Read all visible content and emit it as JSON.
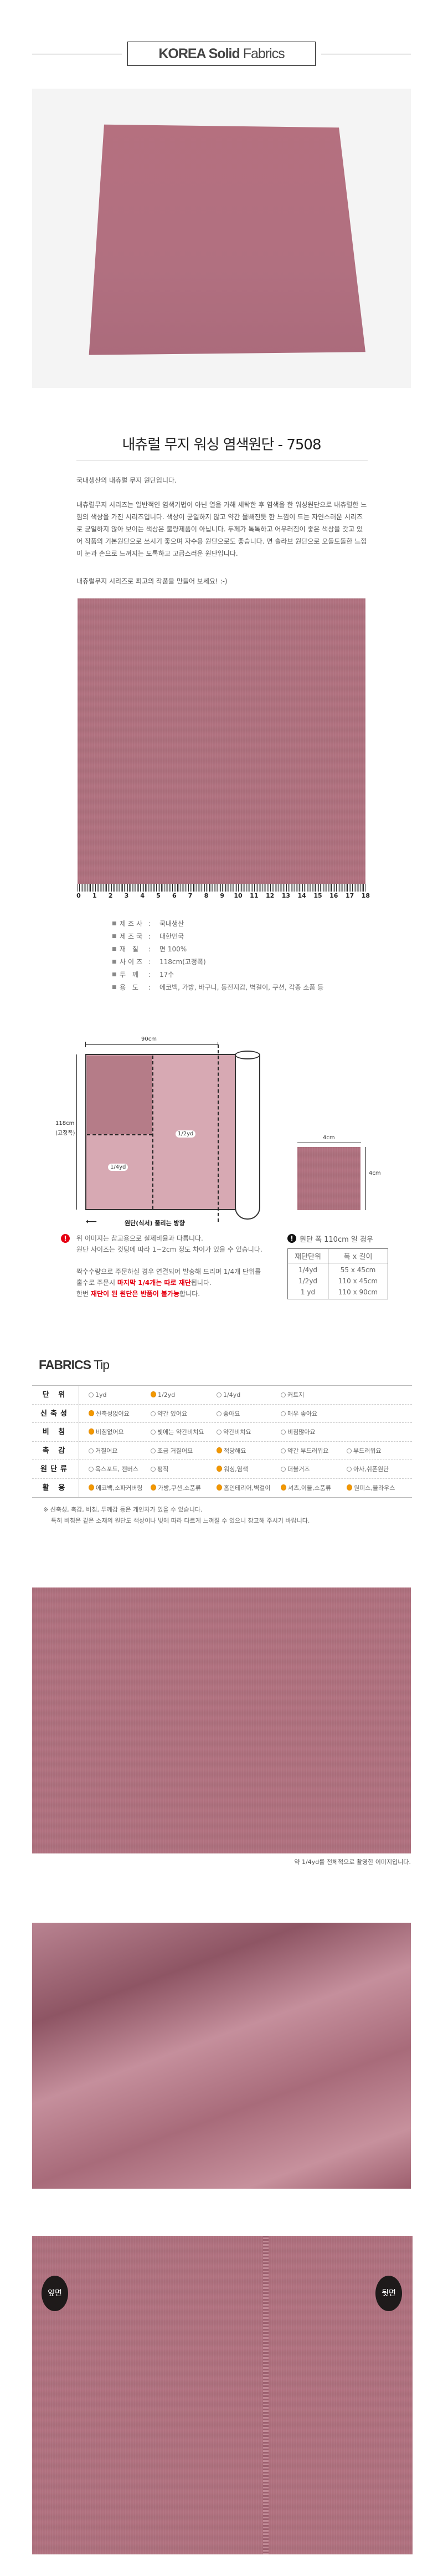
{
  "header": {
    "title_bold": "KOREA Solid",
    "title_light": "Fabrics"
  },
  "product": {
    "title": "내츄럴 무지 워싱 염색원단 - 7508",
    "intro": "국내생산의 내츄럴 무지 원단입니다.",
    "description": "내츄럴무지 시리즈는 일반적인 염색기법이 아닌 열을 가해 세탁한 후 염색을 한 워싱원단으로 내츄럴한 느낌의 색상을 가진 시리즈입니다. 색상이 균일하지 않고 약간 물빠진듯 한 느낌이 드는 자연스러운 시리즈로 균일하지 않아 보이는 색상은 불량제품이 아닙니다. 두께가 톡톡하고 어우러짐이 좋은 색상을 갖고 있어 작품의 기본원단으로 쓰시기 좋으며 자수용 원단으로도 좋습니다. 면 슬라브 원단으로 오돌토돌한 느낌이 눈과 손으로 느껴지는 도톡하고 고급스러운 원단입니다.",
    "closing": "내츄럴무지 시리즈로 최고의 작품을 만들어 보세요! :-)"
  },
  "ruler": {
    "labels": [
      "0",
      "1",
      "2",
      "3",
      "4",
      "5",
      "6",
      "7",
      "8",
      "9",
      "10",
      "11",
      "12",
      "13",
      "14",
      "15",
      "16",
      "17",
      "18"
    ]
  },
  "specs": [
    {
      "key": "제조사",
      "value": "국내생산"
    },
    {
      "key": "제조국",
      "value": "대한민국"
    },
    {
      "key": "재 질",
      "value": "면 100%"
    },
    {
      "key": "사이즈",
      "value": "118cm(고정폭)"
    },
    {
      "key": "두 께",
      "value": "17수"
    },
    {
      "key": "용 도",
      "value": "에코백, 가방, 바구니, 동전지갑, 벽걸이, 쿠션, 각종 소품 등"
    }
  ],
  "diagram": {
    "width_label": "90cm",
    "height_label": "118cm",
    "height_sub": "(고정폭)",
    "half_label": "1/2yd",
    "quarter_label": "1/4yd",
    "direction": "원단(식서) 풀리는 방향",
    "sample_w": "4cm",
    "sample_h": "4cm"
  },
  "notes": {
    "line1": "위 이미지는 참고용으로 실제비율과 다릅니다.",
    "line2": "원단 사이즈는 컷팅에 따라 1~2cm 정도 차이가 있을 수 있습니다.",
    "line3": "짝수수량으로 주문하실 경우 연결되어 발송해 드리며 1/4개 단위를",
    "line4_a": "홀수로 주문시 ",
    "line4_b": "마지막 1/4개는 따로 재단",
    "line4_c": "됩니다.",
    "line5_a": "한번 ",
    "line5_b": "재단이 된 원단은 반품이 불가능",
    "line5_c": "합니다."
  },
  "cut_table": {
    "title": "원단 폭 110cm 일 경우",
    "headers": [
      "재단단위",
      "폭 x 길이"
    ],
    "rows": [
      [
        "1/4yd",
        "55 x 45cm"
      ],
      [
        "1/2yd",
        "110 x 45cm"
      ],
      [
        "1 yd",
        "110 x 90cm"
      ]
    ]
  },
  "tips": {
    "title_bold": "FABRICS",
    "title_light": "Tip",
    "accent": "#f39800",
    "rows": [
      {
        "label": "단 위",
        "options": [
          {
            "t": "1yd",
            "on": false
          },
          {
            "t": "1/2yd",
            "on": true
          },
          {
            "t": "1/4yd",
            "on": false
          },
          {
            "t": "커트지",
            "on": false
          }
        ]
      },
      {
        "label": "신축성",
        "options": [
          {
            "t": "신축성없어요",
            "on": true
          },
          {
            "t": "약간 있어요",
            "on": false
          },
          {
            "t": "좋아요",
            "on": false
          },
          {
            "t": "매우 좋아요",
            "on": false
          }
        ]
      },
      {
        "label": "비 침",
        "options": [
          {
            "t": "비침없어요",
            "on": true
          },
          {
            "t": "빛에는 약간비쳐요",
            "on": false
          },
          {
            "t": "약간비쳐요",
            "on": false
          },
          {
            "t": "비침많아요",
            "on": false
          }
        ]
      },
      {
        "label": "촉 감",
        "options": [
          {
            "t": "거칠어요",
            "on": false
          },
          {
            "t": "조금 거칠어요",
            "on": false
          },
          {
            "t": "적당해요",
            "on": true
          },
          {
            "t": "약간 부드러워요",
            "on": false
          },
          {
            "t": "부드러워요",
            "on": false
          }
        ]
      },
      {
        "label": "원단류",
        "options": [
          {
            "t": "옥스포드, 캔버스",
            "on": false
          },
          {
            "t": "평직",
            "on": false
          },
          {
            "t": "워싱,염색",
            "on": true
          },
          {
            "t": "더블거즈",
            "on": false
          },
          {
            "t": "아사,쉬폰원단",
            "on": false
          }
        ]
      },
      {
        "label": "활 용",
        "options": [
          {
            "t": "에코백,소파커버링",
            "on": true
          },
          {
            "t": "가방,쿠션,소품류",
            "on": true
          },
          {
            "t": "홈인테리어,벽걸이",
            "on": true
          },
          {
            "t": "셔츠,이불,소품류",
            "on": true
          },
          {
            "t": "원피스,블라우스",
            "on": true
          }
        ]
      }
    ],
    "note1": "※ 신축성, 촉감, 비침, 두께감 등은 개인차가 있을 수 있습니다.",
    "note2": "특히 비침은 같은 소재의 원단도 색상이나 빛에 따라 다르게 느껴질 수 있으니 참고해 주시기 바랍니다."
  },
  "gallery": {
    "caption": "약 1/4yd를 전체적으로 촬영한 이미지입니다.",
    "front": "앞면",
    "back": "뒷면"
  },
  "colors": {
    "fabric": "#b0717f",
    "warning": "#e60012"
  }
}
